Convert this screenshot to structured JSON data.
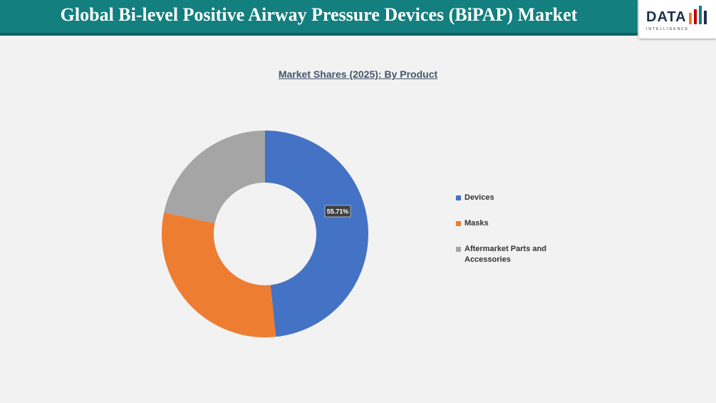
{
  "header": {
    "title": "Global Bi-level Positive Airway Pressure Devices (BiPAP) Market"
  },
  "logo": {
    "name": "DATA",
    "tagline": "INTELLIGENCE"
  },
  "chart_data": {
    "type": "pie",
    "title": "Market Shares (2025): By Product",
    "categories": [
      "Devices",
      "Masks",
      "Aftermarket Parts and Accessories"
    ],
    "values": [
      55.71,
      34.6,
      25
    ],
    "value_labels": [
      "55.71%",
      null,
      null
    ],
    "colors": [
      "#4472c4",
      "#ed7d31",
      "#a5a5a5"
    ],
    "legend": "right"
  }
}
